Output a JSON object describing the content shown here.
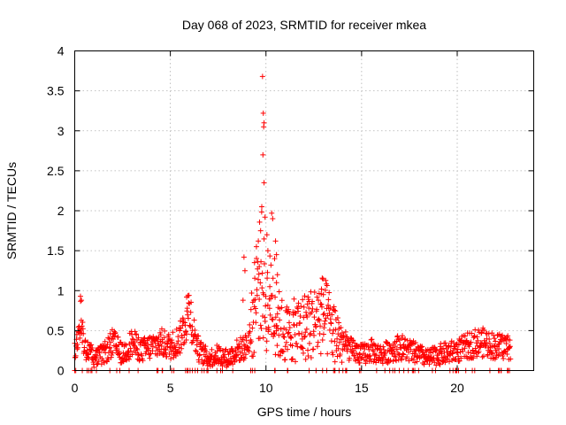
{
  "chart_data": {
    "type": "scatter",
    "title": "Day 068 of 2023, SRMTID for receiver mkea",
    "xlabel": "GPS time / hours",
    "ylabel": "SRMTID / TECUs",
    "xlim": [
      0,
      24
    ],
    "ylim": [
      0,
      4
    ],
    "xticks": [
      0,
      5,
      10,
      15,
      20
    ],
    "yticks": [
      0,
      0.5,
      1,
      1.5,
      2,
      2.5,
      3,
      3.5,
      4
    ],
    "xtick_labels": [
      "0",
      "5",
      "10",
      "15",
      "20"
    ],
    "ytick_labels": [
      "0",
      "0.5",
      "1",
      "1.5",
      "2",
      "2.5",
      "3",
      "3.5",
      "4"
    ],
    "grid": true,
    "marker": "+",
    "color": "#ff0000",
    "series": [
      {
        "name": "SRMTID",
        "profile": [
          [
            0.0,
            0.22
          ],
          [
            0.15,
            0.45
          ],
          [
            0.3,
            0.75
          ],
          [
            0.45,
            0.35
          ],
          [
            0.7,
            0.25
          ],
          [
            1.0,
            0.15
          ],
          [
            1.5,
            0.2
          ],
          [
            2.0,
            0.35
          ],
          [
            2.5,
            0.2
          ],
          [
            3.0,
            0.35
          ],
          [
            3.5,
            0.25
          ],
          [
            4.0,
            0.3
          ],
          [
            4.5,
            0.35
          ],
          [
            5.0,
            0.3
          ],
          [
            5.5,
            0.4
          ],
          [
            5.8,
            0.6
          ],
          [
            6.0,
            0.8
          ],
          [
            6.2,
            0.5
          ],
          [
            6.5,
            0.25
          ],
          [
            7.0,
            0.15
          ],
          [
            7.5,
            0.2
          ],
          [
            8.0,
            0.15
          ],
          [
            8.5,
            0.25
          ],
          [
            9.0,
            0.3
          ],
          [
            9.3,
            0.6
          ],
          [
            9.6,
            1.1
          ],
          [
            9.8,
            1.2
          ],
          [
            10.0,
            0.8
          ],
          [
            10.3,
            0.9
          ],
          [
            10.6,
            0.6
          ],
          [
            11.0,
            0.45
          ],
          [
            11.5,
            0.5
          ],
          [
            12.0,
            0.55
          ],
          [
            12.5,
            0.6
          ],
          [
            13.0,
            0.7
          ],
          [
            13.5,
            0.5
          ],
          [
            14.0,
            0.35
          ],
          [
            14.5,
            0.25
          ],
          [
            15.0,
            0.2
          ],
          [
            15.5,
            0.25
          ],
          [
            16.0,
            0.2
          ],
          [
            16.5,
            0.25
          ],
          [
            17.0,
            0.3
          ],
          [
            17.5,
            0.25
          ],
          [
            18.0,
            0.2
          ],
          [
            18.5,
            0.15
          ],
          [
            19.0,
            0.2
          ],
          [
            19.5,
            0.22
          ],
          [
            20.0,
            0.25
          ],
          [
            20.5,
            0.3
          ],
          [
            21.0,
            0.35
          ],
          [
            21.5,
            0.35
          ],
          [
            22.0,
            0.3
          ],
          [
            22.5,
            0.3
          ],
          [
            22.8,
            0.3
          ]
        ],
        "outliers": [
          [
            9.82,
            3.68
          ],
          [
            9.86,
            3.22
          ],
          [
            9.9,
            3.1
          ],
          [
            9.88,
            3.05
          ],
          [
            9.84,
            2.7
          ],
          [
            9.9,
            2.35
          ],
          [
            9.78,
            2.05
          ],
          [
            9.72,
            1.75
          ],
          [
            9.6,
            1.62
          ],
          [
            9.5,
            1.55
          ],
          [
            9.95,
            1.92
          ],
          [
            10.05,
            1.7
          ],
          [
            10.1,
            1.5
          ],
          [
            10.3,
            1.97
          ],
          [
            10.35,
            1.9
          ],
          [
            10.5,
            1.62
          ],
          [
            10.55,
            1.45
          ],
          [
            10.45,
            1.4
          ],
          [
            9.4,
            1.35
          ],
          [
            9.65,
            1.3
          ],
          [
            8.85,
            1.42
          ],
          [
            8.9,
            1.25
          ],
          [
            8.8,
            0.88
          ],
          [
            10.6,
            1.2
          ],
          [
            10.55,
            1.1
          ],
          [
            10.2,
            1.05
          ],
          [
            12.9,
            1.02
          ],
          [
            13.0,
            0.95
          ],
          [
            12.2,
            0.92
          ],
          [
            5.85,
            0.92
          ],
          [
            0.3,
            0.93
          ],
          [
            0.35,
            0.88
          ]
        ]
      }
    ]
  }
}
